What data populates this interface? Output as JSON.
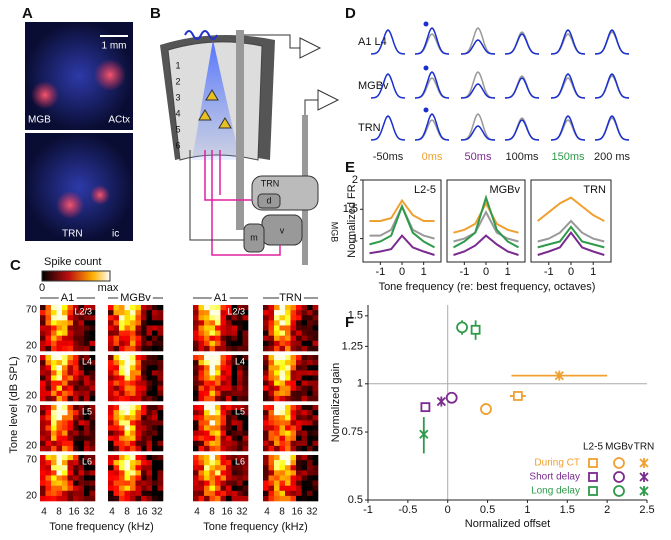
{
  "panels": {
    "A": {
      "letter": "A",
      "scale_bar": "1 mm",
      "top_labels": [
        "MGB",
        "ACtx"
      ],
      "bottom_labels": [
        "TRN",
        "ic"
      ]
    },
    "B": {
      "letter": "B",
      "layers": [
        "1",
        "2",
        "3",
        "4",
        "5",
        "6"
      ],
      "nuclei": [
        "TRN",
        "d",
        "v",
        "m"
      ],
      "mgb": "MGB"
    },
    "C": {
      "letter": "C",
      "colorbar_title": "Spike count",
      "colorbar_min": "0",
      "colorbar_max": "max",
      "groups": [
        [
          "A1",
          "MGBv"
        ],
        [
          "A1",
          "TRN"
        ]
      ],
      "layers": [
        "L2/3",
        "L4",
        "L5",
        "L6"
      ],
      "yticks": [
        70,
        20
      ],
      "xticks": [
        4,
        8,
        16,
        32
      ],
      "ylabel": "Tone level (dB SPL)",
      "xlabel": "Tone frequency (kHz)"
    },
    "D": {
      "letter": "D",
      "rows": [
        "A1 L4",
        "MGBv",
        "TRN"
      ],
      "columns": [
        {
          "label": "-50ms",
          "color": "#222222"
        },
        {
          "label": "0ms",
          "color": "#f0a030"
        },
        {
          "label": "50ms",
          "color": "#7b2a8e"
        },
        {
          "label": "100ms",
          "color": "#222222"
        },
        {
          "label": "150ms",
          "color": "#2e9a4a"
        },
        {
          "label": "200 ms",
          "color": "#222222"
        }
      ]
    },
    "E": {
      "letter": "E",
      "ylabel": "Normalized FR",
      "xlabel": "Tone frequency (re: best frequency, octaves)"
    },
    "F": {
      "letter": "F"
    }
  },
  "chart_data": [
    {
      "type": "line",
      "title": "L2-5",
      "x": [
        -1.5,
        -1,
        -0.5,
        0,
        0.5,
        1,
        1.5
      ],
      "xlim": [
        -1.8,
        1.8
      ],
      "xticks": [
        -1,
        0,
        1
      ],
      "ylim": [
        0.6,
        2
      ],
      "yticks": [
        1,
        1.5,
        2
      ],
      "series": [
        {
          "color": "#f0a030",
          "values": [
            1.3,
            1.3,
            1.35,
            1.65,
            1.4,
            1.3,
            1.3
          ]
        },
        {
          "color": "#999999",
          "values": [
            1.05,
            1.05,
            1.15,
            1.55,
            1.15,
            1.05,
            1.0
          ]
        },
        {
          "color": "#2e9a4a",
          "values": [
            0.9,
            0.95,
            1.05,
            1.55,
            1.1,
            0.95,
            0.85
          ]
        },
        {
          "color": "#7b2a8e",
          "values": [
            0.75,
            0.78,
            0.82,
            1.05,
            0.85,
            0.78,
            0.72
          ]
        }
      ]
    },
    {
      "type": "line",
      "title": "MGBv",
      "x": [
        -1.5,
        -1,
        -0.5,
        0,
        0.5,
        1,
        1.5
      ],
      "xlim": [
        -1.8,
        1.8
      ],
      "xticks": [
        -1,
        0,
        1
      ],
      "ylim": [
        0.6,
        2
      ],
      "series": [
        {
          "color": "#f0a030",
          "values": [
            1.1,
            1.15,
            1.25,
            1.6,
            1.25,
            1.15,
            1.1
          ]
        },
        {
          "color": "#999999",
          "values": [
            0.95,
            1.0,
            1.1,
            1.45,
            1.1,
            1.0,
            0.95
          ]
        },
        {
          "color": "#2e9a4a",
          "values": [
            0.85,
            0.95,
            1.1,
            1.7,
            1.15,
            0.95,
            0.85
          ]
        },
        {
          "color": "#7b2a8e",
          "values": [
            0.72,
            0.78,
            0.88,
            1.05,
            0.9,
            0.78,
            0.72
          ]
        }
      ]
    },
    {
      "type": "line",
      "title": "TRN",
      "x": [
        -1.5,
        -1,
        -0.5,
        0,
        0.5,
        1,
        1.5
      ],
      "xlim": [
        -1.8,
        1.8
      ],
      "xticks": [
        -1,
        0,
        1
      ],
      "ylim": [
        0.6,
        2
      ],
      "series": [
        {
          "color": "#f0a030",
          "values": [
            1.3,
            1.45,
            1.6,
            1.7,
            1.55,
            1.4,
            1.3
          ]
        },
        {
          "color": "#999999",
          "values": [
            0.95,
            1.0,
            1.1,
            1.3,
            1.1,
            1.0,
            0.95
          ]
        },
        {
          "color": "#2e9a4a",
          "values": [
            0.85,
            0.9,
            0.95,
            1.2,
            0.95,
            0.9,
            0.85
          ]
        },
        {
          "color": "#7b2a8e",
          "values": [
            0.72,
            0.78,
            0.85,
            1.1,
            0.85,
            0.78,
            0.72
          ]
        }
      ]
    },
    {
      "type": "scatter",
      "xlabel": "Normalized offset",
      "ylabel": "Normalized gain",
      "xlim": [
        -1,
        2.5
      ],
      "xticks": [
        -1,
        -0.5,
        0,
        0.5,
        1,
        1.5,
        2,
        2.5
      ],
      "ylim": [
        0.5,
        1.6
      ],
      "yticks": [
        0.5,
        0.75,
        1,
        1.25,
        1.5
      ],
      "log_y": true,
      "reference_lines": {
        "x": 0,
        "y": 1
      },
      "legend": {
        "columns": [
          "L2-5",
          "MGBv",
          "TRN"
        ],
        "markers": [
          "square",
          "circle",
          "x"
        ],
        "rows": [
          {
            "label": "During CT",
            "color": "#f0a030"
          },
          {
            "label": "Short delay",
            "color": "#7b2a8e"
          },
          {
            "label": "Long delay",
            "color": "#2e9a4a"
          }
        ]
      },
      "points": [
        [
          {
            "x": 0.88,
            "y": 0.93,
            "xerr": 0.1
          },
          {
            "x": 0.48,
            "y": 0.86,
            "yerr": 0.03
          },
          {
            "x": 1.4,
            "y": 1.05,
            "xerr": 0.6
          }
        ],
        [
          {
            "x": -0.28,
            "y": 0.87
          },
          {
            "x": 0.05,
            "y": 0.92
          },
          {
            "x": -0.08,
            "y": 0.9
          }
        ],
        [
          {
            "x": 0.35,
            "y": 1.38,
            "yerr": 0.08
          },
          {
            "x": 0.18,
            "y": 1.4,
            "yerr": 0.06
          },
          {
            "x": -0.3,
            "y": 0.74,
            "yerr": 0.08
          }
        ]
      ]
    }
  ]
}
